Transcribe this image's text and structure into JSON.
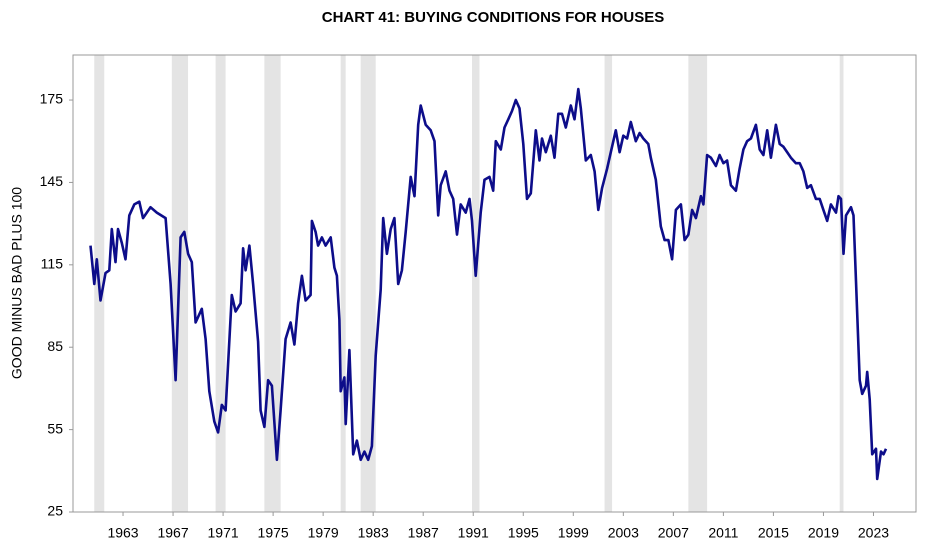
{
  "chart_data": {
    "type": "line",
    "title": "CHART 41: BUYING CONDITIONS FOR HOUSES",
    "y_label": "GOOD MINUS BAD PLUS 100",
    "color": "#0d0d8a",
    "recession_color": "#e4e4e4",
    "recessions": [
      [
        1960.7,
        1961.5
      ],
      [
        1966.9,
        1968.2
      ],
      [
        1970.4,
        1971.2
      ],
      [
        1974.3,
        1975.6
      ],
      [
        1980.4,
        1980.8
      ],
      [
        1982.0,
        1983.2
      ],
      [
        1990.9,
        1991.5
      ],
      [
        2001.5,
        2002.1
      ],
      [
        2008.2,
        2009.7
      ],
      [
        2020.3,
        2020.6
      ]
    ],
    "x": [
      1960.4,
      1960.7,
      1960.9,
      1961.2,
      1961.6,
      1961.9,
      1962.1,
      1962.4,
      1962.6,
      1962.9,
      1963.2,
      1963.5,
      1963.9,
      1964.3,
      1964.6,
      1965.2,
      1965.7,
      1966.4,
      1966.8,
      1967.2,
      1967.6,
      1967.9,
      1968.2,
      1968.5,
      1968.8,
      1969.3,
      1969.6,
      1969.9,
      1970.3,
      1970.6,
      1970.9,
      1971.2,
      1971.7,
      1972.0,
      1972.4,
      1972.6,
      1972.8,
      1973.1,
      1973.4,
      1973.8,
      1974.0,
      1974.3,
      1974.6,
      1974.9,
      1975.3,
      1975.6,
      1976.0,
      1976.4,
      1976.7,
      1977.0,
      1977.3,
      1977.6,
      1978.0,
      1978.1,
      1978.4,
      1978.6,
      1978.9,
      1979.2,
      1979.6,
      1979.9,
      1980.1,
      1980.3,
      1980.4,
      1980.7,
      1980.8,
      1981.1,
      1981.4,
      1981.7,
      1982.0,
      1982.3,
      1982.6,
      1982.9,
      1983.2,
      1983.6,
      1983.8,
      1984.1,
      1984.4,
      1984.7,
      1985.0,
      1985.3,
      1985.6,
      1986.0,
      1986.3,
      1986.6,
      1986.8,
      1987.2,
      1987.6,
      1987.9,
      1988.2,
      1988.4,
      1988.8,
      1989.1,
      1989.4,
      1989.7,
      1990.0,
      1990.4,
      1990.7,
      1990.9,
      1991.2,
      1991.6,
      1991.9,
      1992.3,
      1992.6,
      1992.8,
      1993.2,
      1993.5,
      1993.8,
      1994.1,
      1994.4,
      1994.7,
      1995.0,
      1995.3,
      1995.6,
      1996.0,
      1996.3,
      1996.5,
      1996.8,
      1997.2,
      1997.5,
      1997.8,
      1998.1,
      1998.4,
      1998.8,
      1999.1,
      1999.4,
      1999.6,
      2000.0,
      2000.4,
      2000.7,
      2001.0,
      2001.3,
      2001.7,
      2002.0,
      2002.4,
      2002.7,
      2003.0,
      2003.3,
      2003.6,
      2004.0,
      2004.3,
      2004.6,
      2005.0,
      2005.2,
      2005.6,
      2006.0,
      2006.3,
      2006.6,
      2006.9,
      2007.2,
      2007.6,
      2007.9,
      2008.2,
      2008.5,
      2008.8,
      2009.2,
      2009.4,
      2009.7,
      2010.0,
      2010.4,
      2010.7,
      2011.0,
      2011.3,
      2011.6,
      2012.0,
      2012.3,
      2012.6,
      2012.9,
      2013.2,
      2013.6,
      2013.9,
      2014.2,
      2014.5,
      2014.8,
      2015.2,
      2015.5,
      2015.8,
      2016.1,
      2016.4,
      2016.8,
      2017.1,
      2017.4,
      2017.7,
      2018.0,
      2018.4,
      2018.7,
      2019.0,
      2019.3,
      2019.6,
      2020.0,
      2020.2,
      2020.4,
      2020.6,
      2020.8,
      2021.2,
      2021.4,
      2021.6,
      2021.9,
      2022.1,
      2022.4,
      2022.5,
      2022.7,
      2022.9,
      2023.2,
      2023.3,
      2023.6,
      2023.8,
      2024.0
    ],
    "values": [
      122,
      108,
      117,
      102,
      112,
      113,
      128,
      116,
      128,
      123,
      117,
      133,
      137,
      138,
      132,
      136,
      134,
      132,
      108,
      73,
      125,
      127,
      119,
      116,
      94,
      99,
      88,
      69,
      58,
      54,
      64,
      62,
      104,
      98,
      101,
      121,
      113,
      122,
      108,
      87,
      62,
      56,
      73,
      71,
      44,
      62,
      88,
      94,
      86,
      101,
      111,
      102,
      104,
      131,
      127,
      122,
      125,
      122,
      125,
      114,
      111,
      95,
      69,
      74,
      57,
      84,
      46,
      51,
      44,
      47,
      44,
      49,
      82,
      106,
      132,
      119,
      128,
      132,
      108,
      113,
      127,
      147,
      140,
      166,
      173,
      166,
      164,
      160,
      133,
      144,
      149,
      142,
      139,
      126,
      137,
      134,
      139,
      131,
      111,
      134,
      146,
      147,
      142,
      160,
      157,
      165,
      168,
      171,
      175,
      172,
      159,
      139,
      141,
      164,
      153,
      161,
      156,
      162,
      154,
      170,
      170,
      165,
      173,
      168,
      179,
      172,
      153,
      155,
      149,
      135,
      143,
      150,
      156,
      164,
      156,
      162,
      161,
      167,
      160,
      163,
      161,
      159,
      154,
      146,
      129,
      124,
      124,
      117,
      135,
      137,
      124,
      126,
      135,
      132,
      140,
      137,
      155,
      154,
      151,
      155,
      152,
      153,
      144,
      142,
      150,
      157,
      160,
      161,
      166,
      157,
      155,
      164,
      154,
      166,
      159,
      158,
      156,
      154,
      152,
      152,
      149,
      143,
      144,
      139,
      139,
      135,
      131,
      137,
      134,
      140,
      139,
      119,
      133,
      136,
      133,
      109,
      73,
      68,
      71,
      76,
      66,
      46,
      48,
      37,
      47,
      46,
      48
    ],
    "xlim": [
      1959,
      2026.4
    ],
    "ylim": [
      25,
      191.4
    ],
    "xticks": [
      1963,
      1967,
      1971,
      1975,
      1979,
      1983,
      1987,
      1991,
      1995,
      1999,
      2003,
      2007,
      2011,
      2015,
      2019,
      2023
    ],
    "yticks": [
      25,
      55,
      85,
      115,
      145,
      175
    ]
  }
}
